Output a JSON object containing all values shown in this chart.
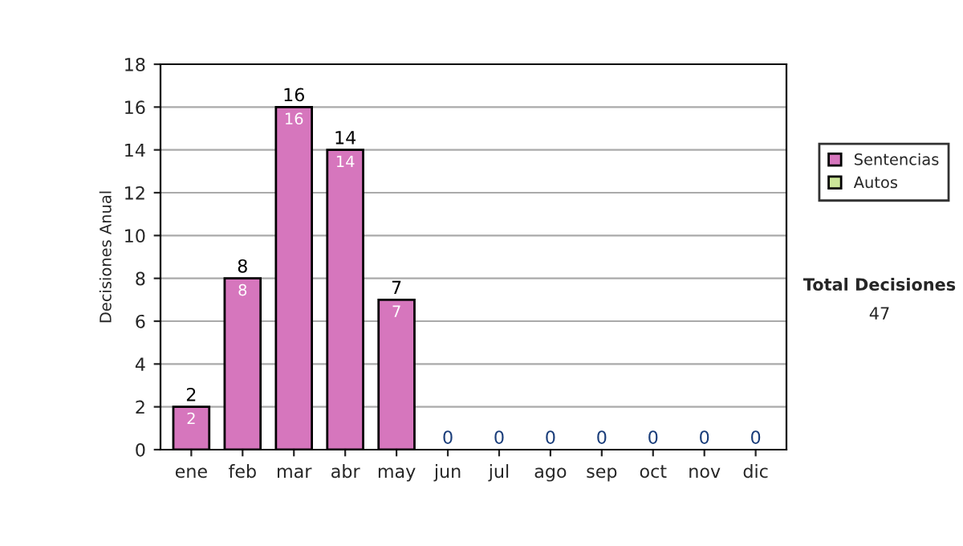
{
  "chart_data": {
    "type": "bar",
    "ylabel": "Decisiones Anual",
    "categories": [
      "ene",
      "feb",
      "mar",
      "abr",
      "may",
      "jun",
      "jul",
      "ago",
      "sep",
      "oct",
      "nov",
      "dic"
    ],
    "series": [
      {
        "name": "Sentencias",
        "color": "#d676bd",
        "values": [
          2,
          8,
          16,
          14,
          7,
          0,
          0,
          0,
          0,
          0,
          0,
          0
        ],
        "value_labels": [
          "2",
          "8",
          "16",
          "14",
          "7",
          null,
          null,
          null,
          null,
          null,
          null,
          null
        ]
      },
      {
        "name": "Autos",
        "color": "#cce699",
        "values": [
          0,
          0,
          0,
          0,
          0,
          0,
          0,
          0,
          0,
          0,
          0,
          0
        ]
      }
    ],
    "stacked": true,
    "totals": [
      "2",
      "8",
      "16",
      "14",
      "7",
      "0",
      "0",
      "0",
      "0",
      "0",
      "0",
      "0"
    ],
    "ylim": [
      0,
      18
    ],
    "yticks": [
      0,
      2,
      4,
      6,
      8,
      10,
      12,
      14,
      16,
      18
    ],
    "grid": "y",
    "legend": "right",
    "annotations": [
      "Total Decisiones",
      "47"
    ]
  }
}
